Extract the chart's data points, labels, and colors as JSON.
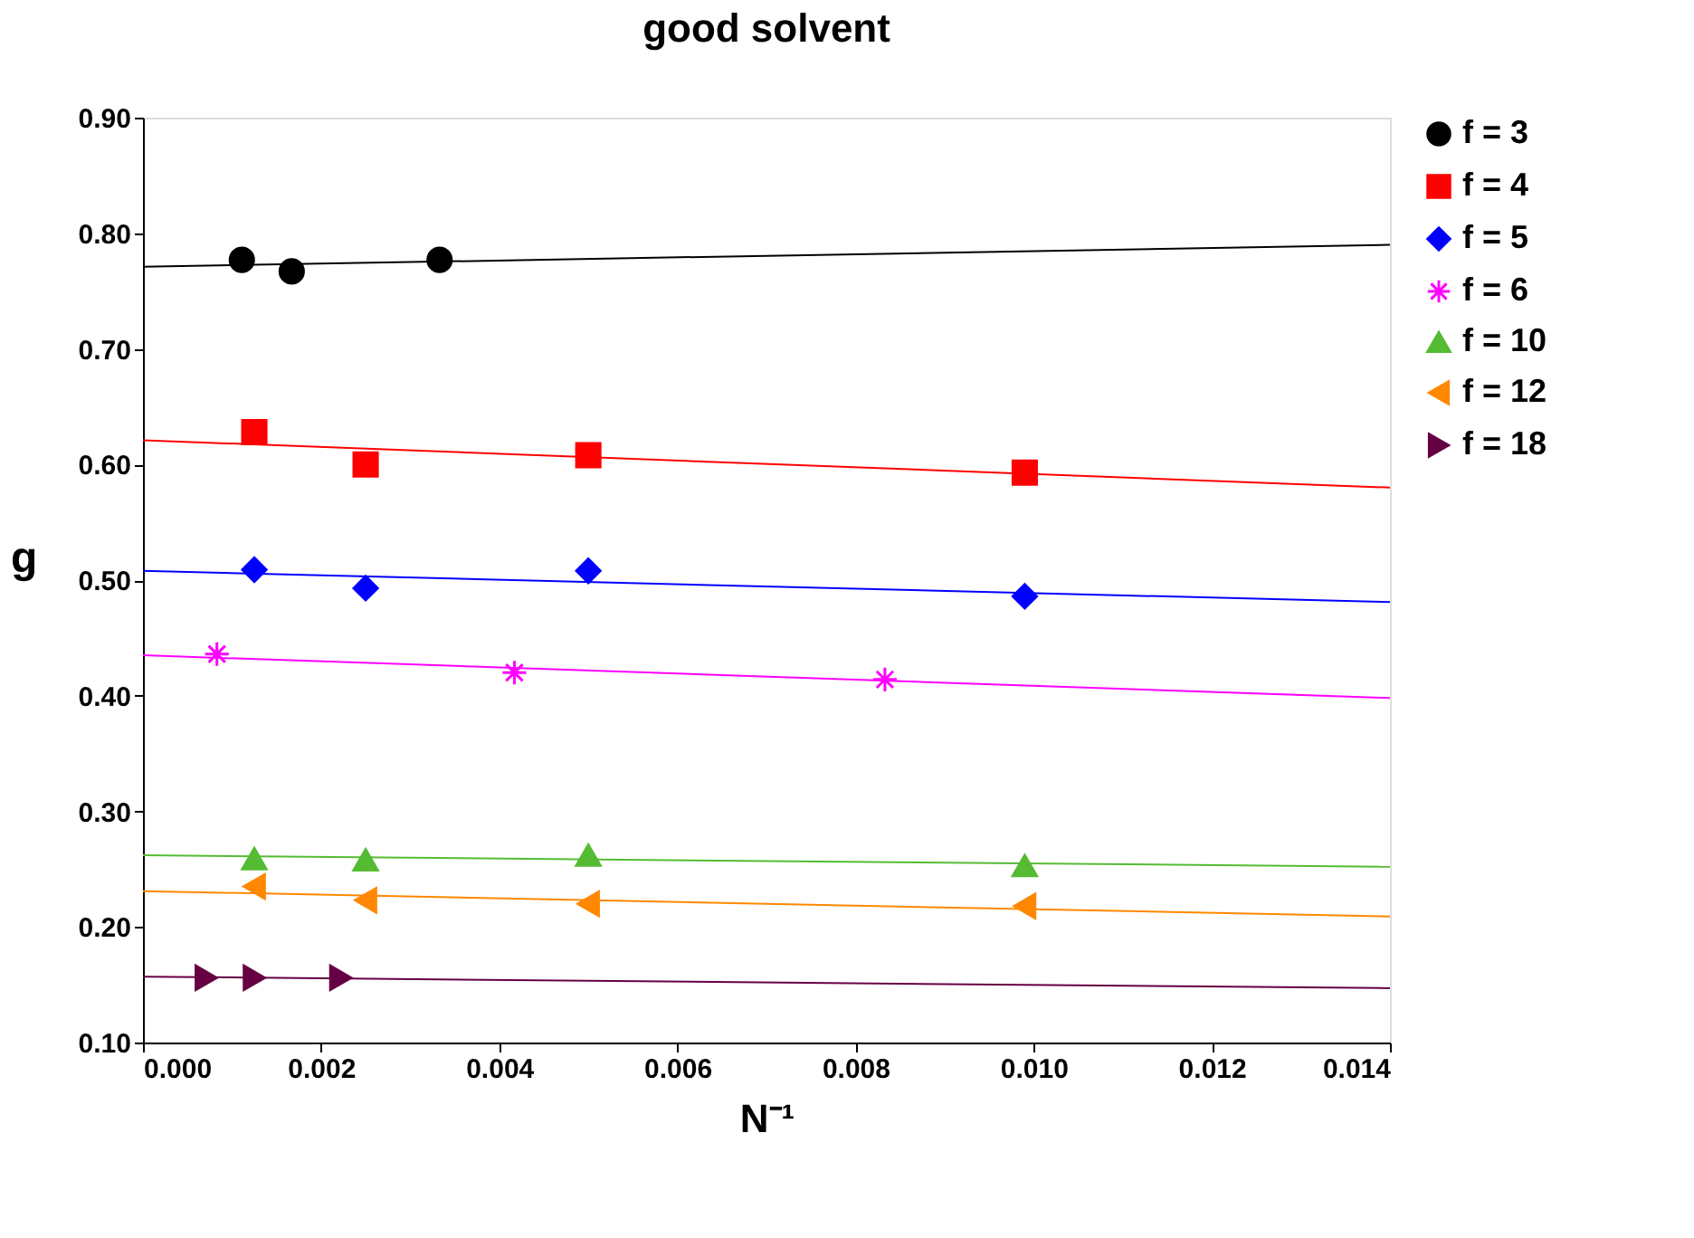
{
  "chart_data": {
    "type": "scatter",
    "title": "good solvent",
    "xlabel": "N⁻¹",
    "ylabel": "g",
    "xlim": [
      0,
      0.014
    ],
    "xticks": [
      {
        "value": 0,
        "label": "0.000"
      },
      {
        "value": 0.002,
        "label": "0.002"
      },
      {
        "value": 0.004,
        "label": "0.004"
      },
      {
        "value": 0.006,
        "label": "0.006"
      },
      {
        "value": 0.008,
        "label": "0.008"
      },
      {
        "value": 0.01,
        "label": "0.010"
      },
      {
        "value": 0.012,
        "label": "0.012"
      },
      {
        "value": 0.014,
        "label": "0.014"
      }
    ],
    "ylim": [
      0.1,
      0.9
    ],
    "yticks": [
      {
        "value": 0.1,
        "label": "0.10"
      },
      {
        "value": 0.2,
        "label": "0.20"
      },
      {
        "value": 0.3,
        "label": "0.30"
      },
      {
        "value": 0.4,
        "label": "0.40"
      },
      {
        "value": 0.5,
        "label": "0.50"
      },
      {
        "value": 0.6,
        "label": "0.60"
      },
      {
        "value": 0.7,
        "label": "0.70"
      },
      {
        "value": 0.8,
        "label": "0.80"
      },
      {
        "value": 0.9,
        "label": "0.90"
      }
    ],
    "grid": false,
    "legend": "top right",
    "series": [
      {
        "name": "f = 3",
        "color": "#000000",
        "marker": "circle",
        "x": [
          0.00111,
          0.00167,
          0.00333
        ],
        "values": [
          0.777,
          0.767,
          0.777
        ]
      },
      {
        "name": "f = 4",
        "color": "#ff0000",
        "marker": "square",
        "x": [
          0.00125,
          0.0025,
          0.005,
          0.0099
        ],
        "values": [
          0.628,
          0.6,
          0.608,
          0.593
        ]
      },
      {
        "name": "f = 5",
        "color": "#0000ff",
        "marker": "diamond",
        "x": [
          0.00125,
          0.0025,
          0.005,
          0.0099
        ],
        "values": [
          0.509,
          0.493,
          0.508,
          0.486
        ]
      },
      {
        "name": "f = 6",
        "color": "#ff00ff",
        "marker": "cross",
        "x": [
          0.00083,
          0.00417,
          0.00833
        ],
        "values": [
          0.436,
          0.42,
          0.414
        ]
      },
      {
        "name": "f = 10",
        "color": "#55bb33",
        "marker": "triangle",
        "x": [
          0.00125,
          0.0025,
          0.005,
          0.0099
        ],
        "values": [
          0.259,
          0.258,
          0.262,
          0.253
        ]
      },
      {
        "name": "f = 12",
        "color": "#ff8800",
        "marker": "triangle-left",
        "x": [
          0.00125,
          0.0025,
          0.005,
          0.0099
        ],
        "values": [
          0.235,
          0.223,
          0.22,
          0.218
        ]
      },
      {
        "name": "f = 18",
        "color": "#660044",
        "marker": "triangle-right",
        "x": [
          0.00071,
          0.00125,
          0.00222
        ],
        "values": [
          0.156,
          0.156,
          0.156
        ]
      },
      {
        "type": "line",
        "color": "#000000",
        "x": [
          0,
          0.014
        ],
        "values": [
          0.771,
          0.79
        ]
      },
      {
        "type": "line",
        "color": "#ff0000",
        "x": [
          0,
          0.014
        ],
        "values": [
          0.621,
          0.58
        ]
      },
      {
        "type": "line",
        "color": "#0000ff",
        "x": [
          0,
          0.014
        ],
        "values": [
          0.508,
          0.481
        ]
      },
      {
        "type": "line",
        "color": "#ff00ff",
        "x": [
          0,
          0.014
        ],
        "values": [
          0.435,
          0.398
        ]
      },
      {
        "type": "line",
        "color": "#55bb33",
        "x": [
          0,
          0.014
        ],
        "values": [
          0.262,
          0.252
        ]
      },
      {
        "type": "line",
        "color": "#ff8800",
        "x": [
          0,
          0.014
        ],
        "values": [
          0.231,
          0.209
        ]
      },
      {
        "type": "line",
        "color": "#660044",
        "x": [
          0,
          0.014
        ],
        "values": [
          0.157,
          0.147
        ]
      }
    ]
  }
}
